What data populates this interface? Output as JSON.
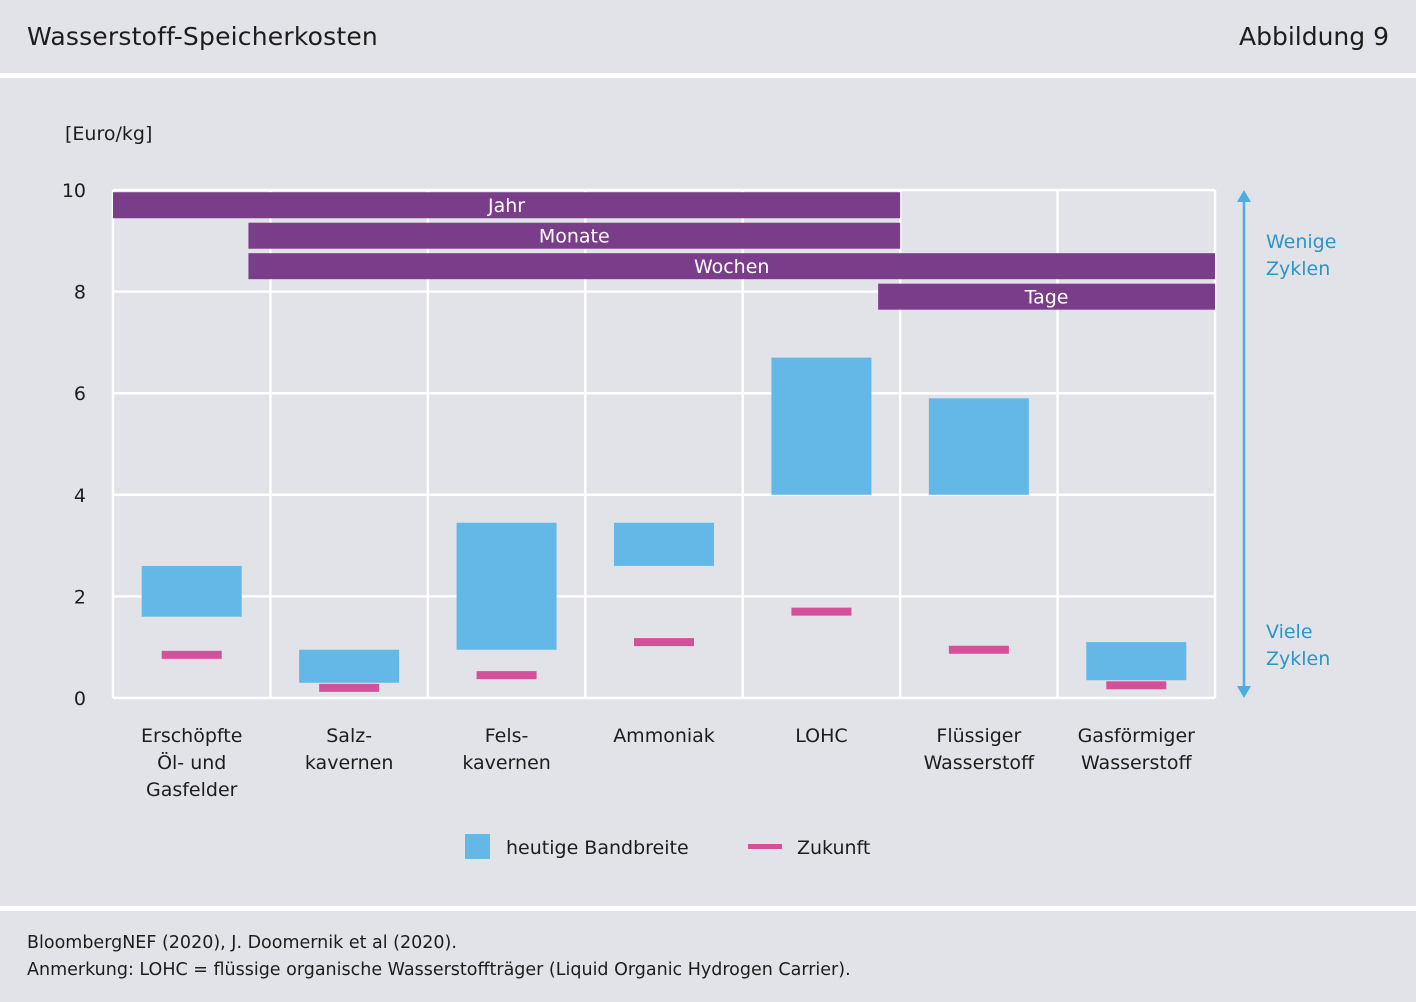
{
  "header": {
    "title": "Wasserstoff-Speicherkosten",
    "figure_label": "Abbildung 9"
  },
  "footer": {
    "source": "BloombergNEF (2020), J. Doomernik et al (2020).",
    "note": "Anmerkung: LOHC = flüssige organische Wasserstoffträger (Liquid Organic Hydrogen Carrier)."
  },
  "colors": {
    "band": "#63b8e8",
    "future": "#d5509a",
    "duration_bar": "#7a3d8a",
    "grid": "#ffffff",
    "arrow": "#4aaee0",
    "arrow_text": "#2b95c9"
  },
  "chart_data": {
    "type": "bar",
    "ylabel": "[Euro/kg]",
    "ylim": [
      0,
      10
    ],
    "yticks": [
      0,
      2,
      4,
      6,
      8,
      10
    ],
    "grid": true,
    "categories": [
      "Erschöpfte\nÖl- und\nGasfelder",
      "Salz-\nkavernen",
      "Fels-\nkavernen",
      "Ammoniak",
      "LOHC",
      "Flüssiger\nWasserstoff",
      "Gasförmiger\nWasserstoff"
    ],
    "series": [
      {
        "name": "heutige Bandbreite",
        "ranges": [
          [
            1.6,
            2.6
          ],
          [
            0.3,
            0.95
          ],
          [
            0.95,
            3.45
          ],
          [
            2.6,
            3.45
          ],
          [
            4.0,
            6.7
          ],
          [
            4.0,
            5.9
          ],
          [
            0.35,
            1.1
          ]
        ]
      },
      {
        "name": "Zukunft",
        "values": [
          0.85,
          0.2,
          0.45,
          1.1,
          1.7,
          0.95,
          0.25
        ]
      }
    ],
    "duration_bars": [
      {
        "label": "Jahr",
        "from_category": 0,
        "to_category": 4,
        "y": 9.7
      },
      {
        "label": "Monate",
        "from_category": 1,
        "to_category": 4,
        "y": 9.1
      },
      {
        "label": "Wochen",
        "from_category": 1,
        "to_category": 6,
        "y": 8.5
      },
      {
        "label": "Tage",
        "from_category": 5,
        "to_category": 6,
        "y": 7.9
      }
    ],
    "cycle_arrow": {
      "top_label": "Wenige\nZyklen",
      "bottom_label": "Viele\nZyklen"
    },
    "legend_position": "bottom"
  }
}
